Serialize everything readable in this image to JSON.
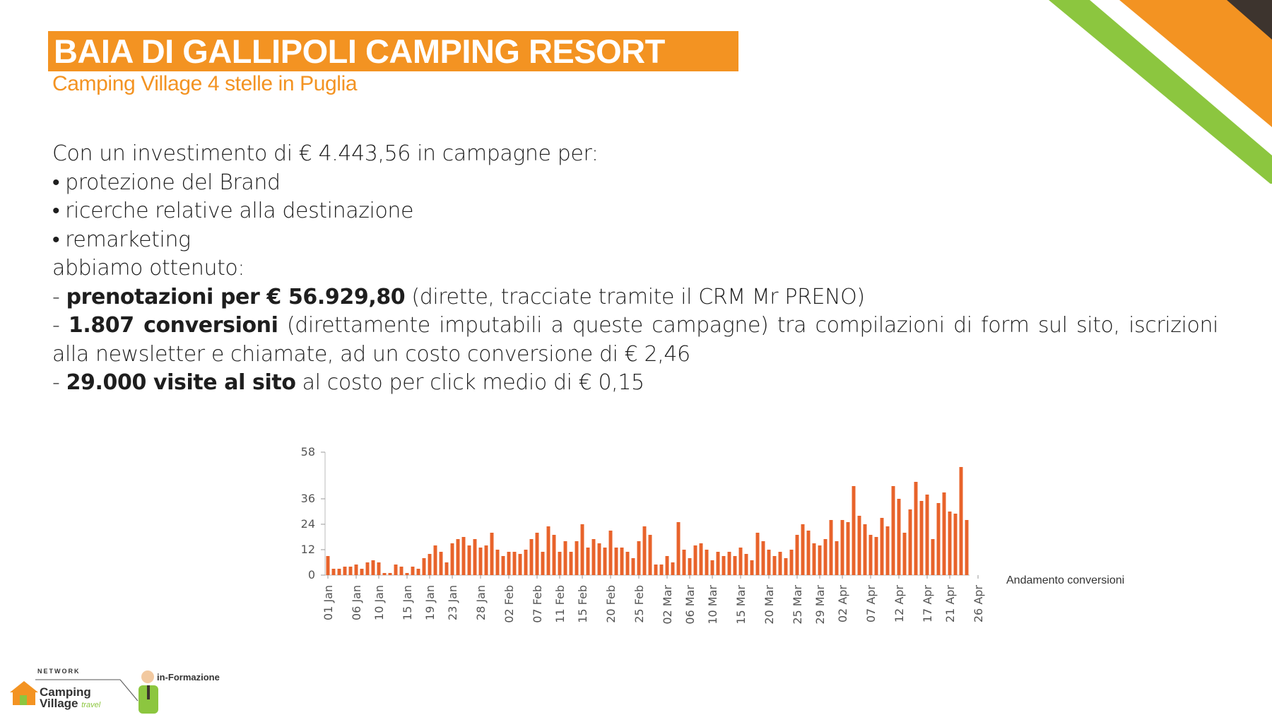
{
  "header": {
    "title": "BAIA DI GALLIPOLI CAMPING RESORT",
    "subtitle": "Camping Village 4 stelle in Puglia"
  },
  "body": {
    "intro": "Con un investimento di € 4.443,56 in campagne per:",
    "bullets": [
      "protezione del Brand",
      "ricerche relative alla destinazione",
      "remarketing"
    ],
    "results_intro": "abbiamo ottenuto:",
    "r1_prefix": "- ",
    "r1_bold": "prenotazioni per € 56.929,80",
    "r1_rest": " (dirette, tracciate tramite il CRM Mr PRENO)",
    "r2_prefix": "- ",
    "r2_bold": "1.807 conversioni",
    "r2_rest": " (direttamente imputabili a queste campagne) tra compilazioni di form sul sito, iscrizioni alla newsletter e chiamate, ad un costo conversione di € 2,46",
    "r3_prefix": "- ",
    "r3_bold": "29.000 visite al sito",
    "r3_rest": " al costo per click medio di € 0,15"
  },
  "footer": {
    "network": "NETWORK",
    "camping": "Camping",
    "village": "Village",
    "travel": "travel",
    "informazione": "in-Formazione"
  },
  "colors": {
    "accent": "#f39322",
    "bar": "#e8632b",
    "green": "#8cc63f",
    "dark": "#3d342e"
  },
  "chart_data": {
    "type": "bar",
    "legend": "Andamento conversioni",
    "ylim": [
      0,
      58
    ],
    "yticks": [
      0,
      12,
      24,
      36,
      58
    ],
    "x_tick_labels": [
      "01 Jan",
      "06 Jan",
      "10 Jan",
      "15 Jan",
      "19 Jan",
      "23 Jan",
      "28 Jan",
      "02 Feb",
      "07 Feb",
      "11 Feb",
      "15 Feb",
      "20 Feb",
      "25 Feb",
      "02 Mar",
      "06 Mar",
      "10 Mar",
      "15 Mar",
      "20 Mar",
      "25 Mar",
      "29 Mar",
      "02 Apr",
      "07 Apr",
      "12 Apr",
      "17 Apr",
      "21 Apr",
      "26 Apr"
    ],
    "x_tick_index": [
      0,
      5,
      9,
      14,
      18,
      22,
      27,
      32,
      37,
      41,
      45,
      50,
      55,
      60,
      64,
      68,
      73,
      78,
      83,
      87,
      91,
      96,
      101,
      106,
      110,
      115
    ],
    "values": [
      9,
      3,
      3,
      4,
      4,
      5,
      3,
      6,
      7,
      6,
      1,
      1,
      5,
      4,
      1,
      4,
      3,
      8,
      10,
      14,
      11,
      6,
      15,
      17,
      18,
      14,
      17,
      13,
      14,
      20,
      12,
      9,
      11,
      11,
      10,
      12,
      17,
      20,
      11,
      23,
      19,
      11,
      16,
      11,
      16,
      24,
      13,
      17,
      15,
      13,
      21,
      13,
      13,
      11,
      8,
      16,
      23,
      19,
      5,
      5,
      9,
      6,
      25,
      12,
      8,
      14,
      15,
      12,
      7,
      11,
      9,
      11,
      9,
      13,
      10,
      7,
      20,
      16,
      12,
      9,
      11,
      8,
      12,
      19,
      24,
      21,
      15,
      14,
      17,
      26,
      16,
      26,
      25,
      42,
      28,
      24,
      19,
      18,
      27,
      23,
      42,
      36,
      20,
      31,
      44,
      35,
      38,
      17,
      34,
      39,
      30,
      29,
      51,
      26
    ]
  }
}
